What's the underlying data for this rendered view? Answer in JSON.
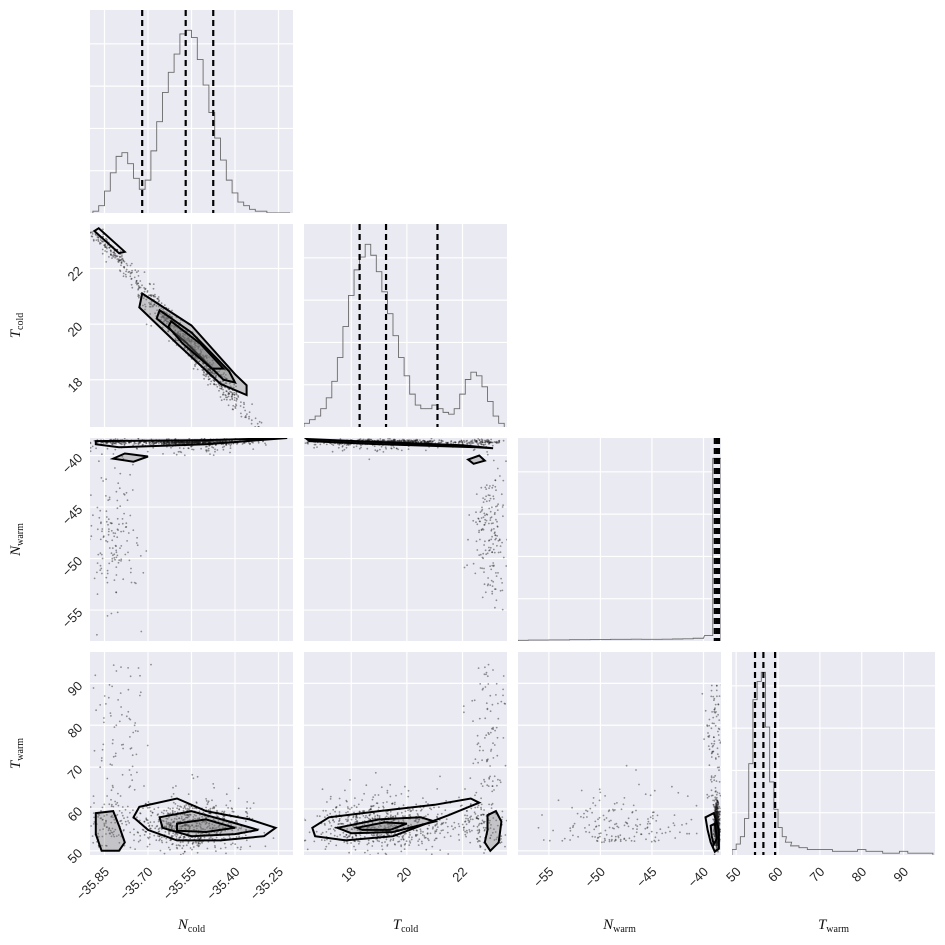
{
  "colors": {
    "panel_bg": "#eaeaf2",
    "grid": "#ffffff",
    "hist": "#6b6b6b",
    "quantile_line": "#000000",
    "contour": "#000000",
    "points": "#1a1a1a"
  },
  "chart_data": {
    "type": "corner",
    "parameters": [
      {
        "key": "N_cold",
        "symbol": "N",
        "sub": "cold",
        "range": [
          -35.9,
          -35.2
        ],
        "ticks": [
          -35.85,
          -35.7,
          -35.55,
          -35.4,
          -35.25
        ],
        "tick_labels": [
          "−35.85",
          "−35.70",
          "−35.55",
          "−35.40",
          "−35.25"
        ],
        "quantiles": [
          -35.72,
          -35.57,
          -35.475
        ],
        "hist": {
          "centers": [
            -35.88,
            -35.86,
            -35.84,
            -35.82,
            -35.8,
            -35.78,
            -35.76,
            -35.74,
            -35.72,
            -35.7,
            -35.68,
            -35.66,
            -35.64,
            -35.62,
            -35.6,
            -35.58,
            -35.56,
            -35.54,
            -35.52,
            -35.5,
            -35.48,
            -35.46,
            -35.44,
            -35.42,
            -35.4,
            -35.38,
            -35.36,
            -35.34,
            -35.32,
            -35.3,
            -35.28,
            -35.26,
            -35.24,
            -35.22
          ],
          "counts": [
            1,
            4,
            12,
            22,
            31,
            33,
            27,
            19,
            13,
            18,
            34,
            50,
            66,
            77,
            87,
            98,
            100,
            96,
            84,
            70,
            55,
            41,
            29,
            18,
            11,
            6,
            4,
            2,
            1,
            1,
            0,
            0,
            0,
            0
          ]
        }
      },
      {
        "key": "T_cold",
        "symbol": "T",
        "sub": "cold",
        "range": [
          16.3,
          23.6
        ],
        "ticks": [
          18,
          20,
          22
        ],
        "tick_labels": [
          "18",
          "20",
          "22"
        ],
        "quantiles": [
          18.3,
          19.25,
          21.1
        ],
        "hist": {
          "centers": [
            16.4,
            16.6,
            16.8,
            17.0,
            17.2,
            17.4,
            17.6,
            17.8,
            18.0,
            18.2,
            18.4,
            18.6,
            18.8,
            19.0,
            19.2,
            19.4,
            19.6,
            19.8,
            20.0,
            20.2,
            20.4,
            20.6,
            20.8,
            21.0,
            21.2,
            21.4,
            21.6,
            21.8,
            22.0,
            22.2,
            22.4,
            22.6,
            22.8,
            23.0,
            23.2,
            23.4
          ],
          "counts": [
            2,
            4,
            6,
            10,
            16,
            25,
            38,
            55,
            72,
            86,
            93,
            100,
            94,
            85,
            74,
            62,
            50,
            38,
            28,
            18,
            12,
            10,
            10,
            12,
            10,
            8,
            7,
            10,
            18,
            26,
            30,
            28,
            22,
            14,
            6,
            2
          ]
        }
      },
      {
        "key": "N_warm",
        "symbol": "N",
        "sub": "warm",
        "range": [
          -58.0,
          -38.3
        ],
        "ticks": [
          -55,
          -50,
          -45,
          -40
        ],
        "tick_labels": [
          "−55",
          "−50",
          "−45",
          "−40"
        ],
        "quantiles": [
          -38.9,
          -38.7,
          -38.5
        ],
        "hist": {
          "centers": [
            -57.5,
            -56.5,
            -55.5,
            -54.5,
            -53.5,
            -52.5,
            -51.5,
            -50.5,
            -49.5,
            -48.5,
            -47.5,
            -46.5,
            -45.5,
            -44.5,
            -43.5,
            -42.5,
            -41.5,
            -40.5,
            -39.5,
            -38.7
          ],
          "counts": [
            0.4,
            0.5,
            0.5,
            0.6,
            0.6,
            0.7,
            0.7,
            0.8,
            0.8,
            0.9,
            0.9,
            1.0,
            0.9,
            0.9,
            1.0,
            1.1,
            1.2,
            1.5,
            3.0,
            100
          ]
        }
      },
      {
        "key": "T_warm",
        "symbol": "T",
        "sub": "warm",
        "range": [
          49.0,
          97.5
        ],
        "ticks": [
          50,
          60,
          70,
          80,
          90
        ],
        "tick_labels": [
          "50",
          "60",
          "70",
          "80",
          "90"
        ],
        "quantiles": [
          54.5,
          56.5,
          59.3
        ],
        "hist": {
          "centers": [
            49.5,
            50.5,
            51.5,
            52.5,
            53.5,
            54.5,
            55.5,
            56.5,
            57.5,
            58.5,
            59.5,
            60.5,
            61.5,
            62.5,
            64.0,
            66.0,
            68.0,
            70.0,
            72.0,
            74.0,
            76.0,
            78.0,
            80.0,
            82.0,
            84.0,
            86.0,
            88.0,
            90.0,
            92.0,
            94.0,
            96.0
          ],
          "counts": [
            3,
            6,
            10,
            20,
            50,
            85,
            95,
            100,
            70,
            40,
            25,
            15,
            10,
            7,
            5,
            4,
            3,
            3,
            3,
            2,
            2,
            2,
            3,
            2,
            2,
            1,
            1,
            2,
            1,
            1,
            1
          ]
        }
      }
    ],
    "axis_labels": [
      {
        "symbol": "N",
        "sub": "cold"
      },
      {
        "symbol": "T",
        "sub": "cold"
      },
      {
        "symbol": "N",
        "sub": "warm"
      },
      {
        "symbol": "T",
        "sub": "warm"
      }
    ],
    "contours": [
      {
        "row": 1,
        "col": 0,
        "levels": [
          [
            [
              -35.885,
              23.35
            ],
            [
              -35.8,
              22.55
            ],
            [
              -35.78,
              22.6
            ],
            [
              -35.87,
              23.45
            ]
          ],
          [
            [
              -35.72,
              21.1
            ],
            [
              -35.55,
              19.95
            ],
            [
              -35.4,
              18.2
            ],
            [
              -35.36,
              17.8
            ],
            [
              -35.36,
              17.45
            ],
            [
              -35.45,
              17.85
            ],
            [
              -35.6,
              19.3
            ],
            [
              -35.73,
              20.6
            ]
          ],
          [
            [
              -35.66,
              20.5
            ],
            [
              -35.55,
              19.7
            ],
            [
              -35.42,
              18.3
            ],
            [
              -35.4,
              17.9
            ],
            [
              -35.44,
              18.0
            ],
            [
              -35.57,
              19.35
            ],
            [
              -35.67,
              20.2
            ]
          ],
          [
            [
              -35.62,
              20.1
            ],
            [
              -35.52,
              19.3
            ],
            [
              -35.44,
              18.4
            ],
            [
              -35.48,
              18.4
            ],
            [
              -35.58,
              19.3
            ],
            [
              -35.63,
              19.9
            ]
          ]
        ]
      },
      {
        "row": 2,
        "col": 0,
        "levels": [
          [
            [
              -35.88,
              -38.6
            ],
            [
              -35.5,
              -38.5
            ],
            [
              -35.22,
              -38.3
            ],
            [
              -35.5,
              -38.9
            ],
            [
              -35.8,
              -39.2
            ],
            [
              -35.88,
              -38.9
            ]
          ],
          [
            [
              -35.75,
              -40.6
            ],
            [
              -35.7,
              -40.1
            ],
            [
              -35.78,
              -39.8
            ],
            [
              -35.82,
              -40.3
            ]
          ]
        ]
      },
      {
        "row": 2,
        "col": 1,
        "levels": [
          [
            [
              16.4,
              -38.4
            ],
            [
              19.0,
              -38.7
            ],
            [
              22.0,
              -39.0
            ],
            [
              23.1,
              -39.3
            ],
            [
              22.5,
              -39.2
            ],
            [
              19.0,
              -38.9
            ],
            [
              16.5,
              -38.6
            ]
          ],
          [
            [
              22.2,
              -40.4
            ],
            [
              22.6,
              -40.0
            ],
            [
              22.8,
              -40.5
            ],
            [
              22.4,
              -40.8
            ]
          ]
        ]
      },
      {
        "row": 3,
        "col": 0,
        "levels": [
          [
            [
              -35.73,
              60.5
            ],
            [
              -35.6,
              62.5
            ],
            [
              -35.5,
              59.5
            ],
            [
              -35.35,
              57.5
            ],
            [
              -35.26,
              55.5
            ],
            [
              -35.3,
              53.5
            ],
            [
              -35.45,
              52.5
            ],
            [
              -35.6,
              52.5
            ],
            [
              -35.7,
              55.0
            ],
            [
              -35.75,
              58.0
            ]
          ],
          [
            [
              -35.66,
              58.0
            ],
            [
              -35.55,
              59.5
            ],
            [
              -35.42,
              57.0
            ],
            [
              -35.32,
              55.0
            ],
            [
              -35.4,
              54.0
            ],
            [
              -35.55,
              53.5
            ],
            [
              -35.65,
              55.5
            ]
          ],
          [
            [
              -35.6,
              56.5
            ],
            [
              -35.5,
              57.5
            ],
            [
              -35.4,
              55.5
            ],
            [
              -35.5,
              54.5
            ],
            [
              -35.6,
              54.8
            ]
          ],
          [
            [
              -35.88,
              59.0
            ],
            [
              -35.82,
              59.5
            ],
            [
              -35.8,
              56.0
            ],
            [
              -35.78,
              52.0
            ],
            [
              -35.8,
              50.0
            ],
            [
              -35.86,
              50.0
            ],
            [
              -35.88,
              54.0
            ]
          ]
        ]
      },
      {
        "row": 3,
        "col": 1,
        "levels": [
          [
            [
              16.6,
              55.5
            ],
            [
              17.2,
              58.0
            ],
            [
              19.0,
              59.5
            ],
            [
              21.0,
              61.0
            ],
            [
              22.3,
              62.5
            ],
            [
              22.6,
              61.5
            ],
            [
              21.5,
              58.5
            ],
            [
              19.5,
              53.5
            ],
            [
              17.8,
              52.5
            ],
            [
              16.7,
              53.5
            ]
          ],
          [
            [
              17.5,
              55.5
            ],
            [
              19.0,
              57.5
            ],
            [
              20.5,
              58.0
            ],
            [
              21.0,
              57.0
            ],
            [
              19.5,
              54.5
            ],
            [
              18.0,
              54.2
            ]
          ],
          [
            [
              18.2,
              55.5
            ],
            [
              19.2,
              56.8
            ],
            [
              20.0,
              56.5
            ],
            [
              19.4,
              55.0
            ],
            [
              18.4,
              55.0
            ]
          ],
          [
            [
              22.9,
              58.5
            ],
            [
              23.2,
              59.5
            ],
            [
              23.4,
              57.0
            ],
            [
              23.3,
              52.0
            ],
            [
              23.0,
              50.0
            ],
            [
              22.8,
              52.0
            ],
            [
              22.9,
              55.0
            ]
          ]
        ]
      },
      {
        "row": 3,
        "col": 2,
        "levels": [
          [
            [
              -39.8,
              58.0
            ],
            [
              -39.0,
              59.0
            ],
            [
              -38.5,
              55.0
            ],
            [
              -38.5,
              50.5
            ],
            [
              -38.9,
              49.8
            ],
            [
              -39.3,
              52.0
            ],
            [
              -39.6,
              55.0
            ]
          ],
          [
            [
              -39.3,
              56.0
            ],
            [
              -38.9,
              56.5
            ],
            [
              -38.7,
              53.0
            ],
            [
              -39.0,
              51.5
            ],
            [
              -39.2,
              53.5
            ]
          ]
        ]
      }
    ]
  }
}
